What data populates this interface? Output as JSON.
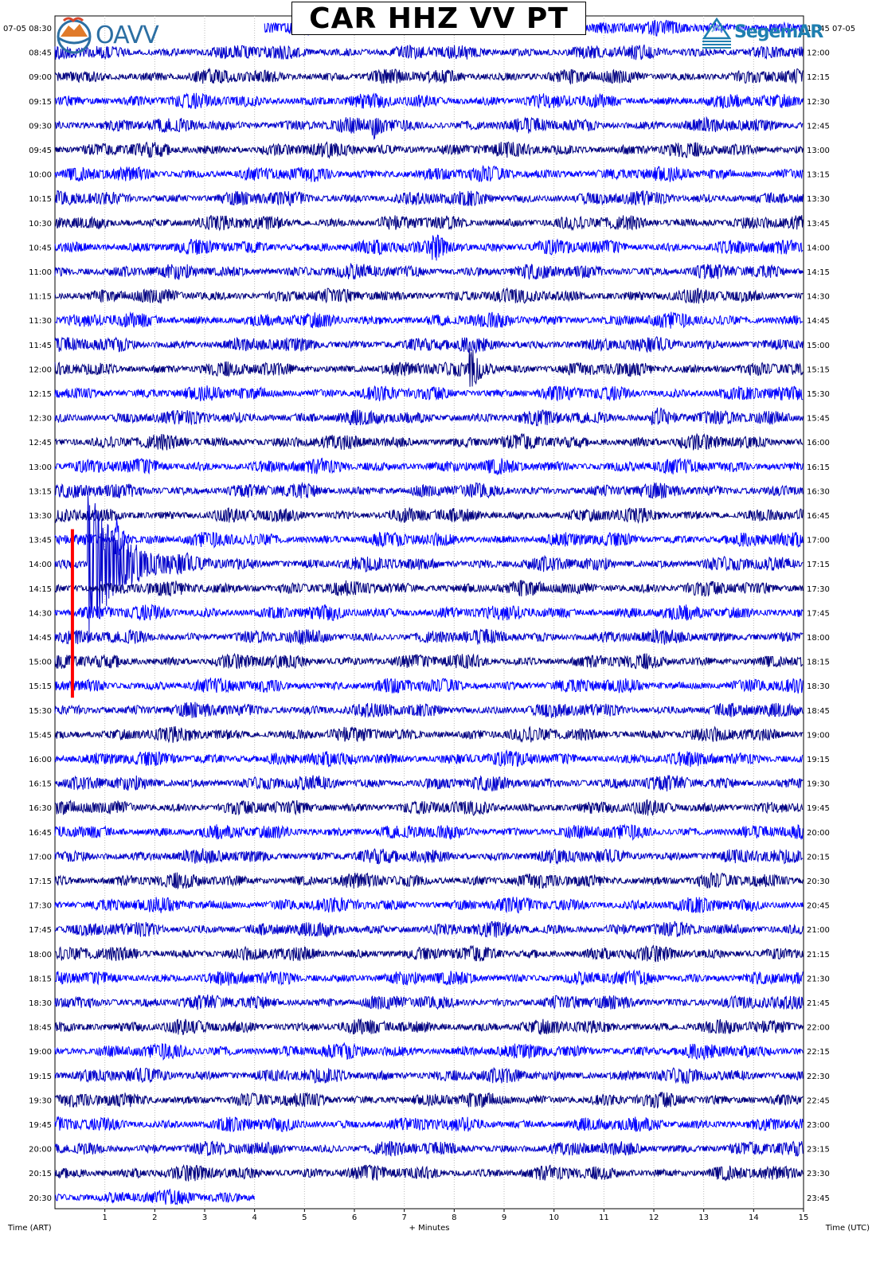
{
  "chart_data": {
    "type": "line",
    "title": "CAR HHZ VV PT",
    "xlabel": "+ Minutes",
    "x_ticks": [
      "1",
      "2",
      "3",
      "4",
      "5",
      "6",
      "7",
      "8",
      "9",
      "10",
      "11",
      "12",
      "13",
      "14",
      "15"
    ],
    "xlim": [
      0,
      15
    ],
    "left_axis_label": "Time (ART)",
    "right_axis_label": "Time (UTC)",
    "left_date": "07-05",
    "right_date": "07-05",
    "rows_left": [
      "08:30",
      "08:45",
      "09:00",
      "09:15",
      "09:30",
      "09:45",
      "10:00",
      "10:15",
      "10:30",
      "10:45",
      "11:00",
      "11:15",
      "11:30",
      "11:45",
      "12:00",
      "12:15",
      "12:30",
      "12:45",
      "13:00",
      "13:15",
      "13:30",
      "13:45",
      "14:00",
      "14:15",
      "14:30",
      "14:45",
      "15:00",
      "15:15",
      "15:30",
      "15:45",
      "16:00",
      "16:15",
      "16:30",
      "16:45",
      "17:00",
      "17:15",
      "17:30",
      "17:45",
      "18:00",
      "18:15",
      "18:30",
      "18:45",
      "19:00",
      "19:15",
      "19:30",
      "19:45",
      "20:00",
      "20:15",
      "20:30"
    ],
    "rows_right": [
      "11:45",
      "12:00",
      "12:15",
      "12:30",
      "12:45",
      "13:00",
      "13:15",
      "13:30",
      "13:45",
      "14:00",
      "14:15",
      "14:30",
      "14:45",
      "15:00",
      "15:15",
      "15:30",
      "15:45",
      "16:00",
      "16:15",
      "16:30",
      "16:45",
      "17:00",
      "17:15",
      "17:30",
      "17:45",
      "18:00",
      "18:15",
      "18:30",
      "18:45",
      "19:00",
      "19:15",
      "19:30",
      "19:45",
      "20:00",
      "20:15",
      "20:30",
      "20:45",
      "21:00",
      "21:15",
      "21:30",
      "21:45",
      "22:00",
      "22:15",
      "22:30",
      "22:45",
      "23:00",
      "23:15",
      "23:30",
      "23:45"
    ],
    "trace_colors": [
      "#0000ff",
      "#0000cc",
      "#000080"
    ],
    "first_row_start_minute": 4.2,
    "last_row_end_minute": 4.0,
    "events": [
      {
        "row": "14:00",
        "minute": 0.7,
        "amplitude": 4.5,
        "duration_minutes": 2.0
      },
      {
        "row": "13:45",
        "minute": 1.25,
        "amplitude": 1.2,
        "duration_minutes": 0.4
      },
      {
        "row": "12:00",
        "minute": 8.35,
        "amplitude": 1.3,
        "duration_minutes": 0.6
      },
      {
        "row": "09:30",
        "minute": 6.4,
        "amplitude": 0.6,
        "duration_minutes": 0.5
      },
      {
        "row": "12:30",
        "minute": 12.0,
        "amplitude": 0.6,
        "duration_minutes": 1.0
      },
      {
        "row": "10:45",
        "minute": 7.6,
        "amplitude": 0.6,
        "duration_minutes": 0.8
      }
    ],
    "marker": {
      "color": "#ff0000",
      "minute": 0.35,
      "from_row": "13:45",
      "to_row": "15:15"
    }
  },
  "logos": {
    "left": {
      "name": "OAVV",
      "icon": "oavv-volcano-logo"
    },
    "right": {
      "name": "SegemAR",
      "icon": "segemar-logo"
    }
  }
}
